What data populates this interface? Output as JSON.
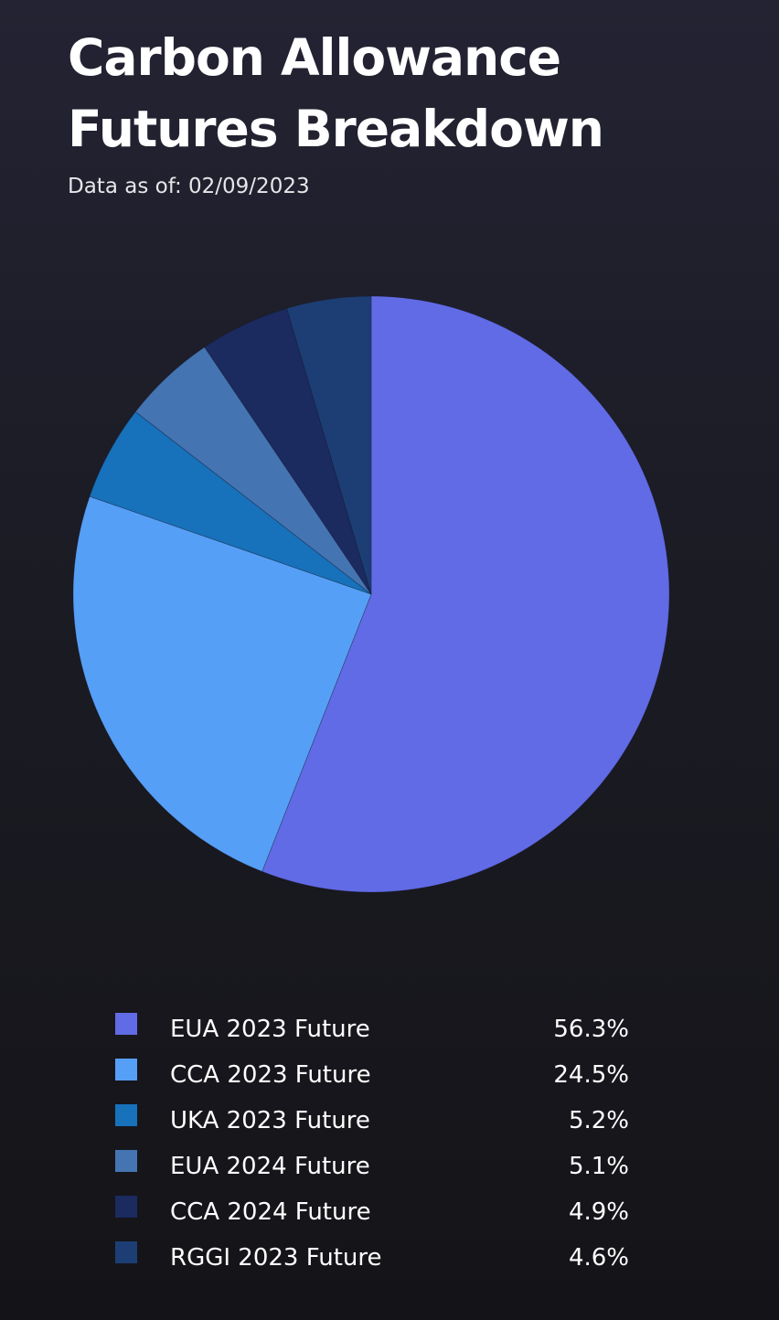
{
  "header": {
    "title": "Carbon Allowance Futures Breakdown",
    "subtitle": "Data as of: 02/09/2023"
  },
  "chart_data": {
    "type": "pie",
    "title": "Carbon Allowance Futures Breakdown",
    "subtitle": "Data as of: 02/09/2023",
    "legend_position": "bottom",
    "categories": [
      "EUA 2023 Future",
      "CCA 2023 Future",
      "UKA 2023 Future",
      "EUA 2024 Future",
      "CCA 2024 Future",
      "RGGI 2023 Future"
    ],
    "values": [
      56.3,
      24.5,
      5.2,
      5.1,
      4.9,
      4.6
    ],
    "value_labels": [
      "56.3%",
      "24.5%",
      "5.2%",
      "5.1%",
      "4.9%",
      "4.6%"
    ],
    "colors": [
      "#616be6",
      "#569ff7",
      "#1771bb",
      "#4574b3",
      "#1b2b60",
      "#1d3e74"
    ],
    "start": "top",
    "direction": "clockwise"
  }
}
